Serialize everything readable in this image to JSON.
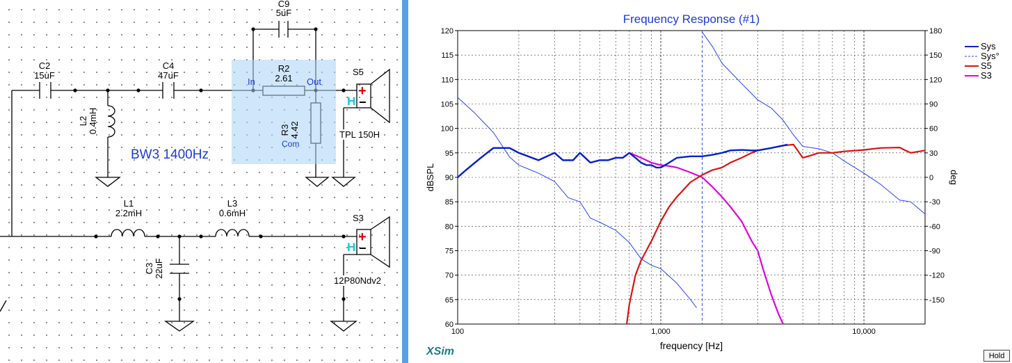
{
  "schematic": {
    "components": {
      "C2": {
        "name": "C2",
        "value": "15uF"
      },
      "C4": {
        "name": "C4",
        "value": "47uF"
      },
      "C9": {
        "name": "C9",
        "value": "5uF"
      },
      "R2": {
        "name": "R2",
        "value": "2.61"
      },
      "R3": {
        "name": "R3",
        "value": "4.42"
      },
      "L2": {
        "name": "L2",
        "value": "0.4mH"
      },
      "L1": {
        "name": "L1",
        "value": "2.2mH"
      },
      "L3": {
        "name": "L3",
        "value": "0.6mH"
      },
      "C3": {
        "name": "C3",
        "value": "22uF"
      },
      "S5": {
        "name": "S5",
        "model": "TPL 150H"
      },
      "S3": {
        "name": "S3",
        "model": "12P80Ndv2"
      }
    },
    "block_pins": {
      "in": "In",
      "out": "Out",
      "com": "Com"
    },
    "filter_label": "BW3 1400Hz",
    "driver_h": "H",
    "driver_plus": "+",
    "driver_minus": "−"
  },
  "plot": {
    "brand": "XSim",
    "hold_button": "Hold"
  },
  "chart_data": {
    "type": "line",
    "title": "Frequency Response (#1)",
    "xlabel": "frequency [Hz]",
    "ylabel": "dBSPL",
    "y2label": "deg",
    "x_scale": "log",
    "xlim": [
      100,
      20000
    ],
    "ylim": [
      60,
      120
    ],
    "y2lim": [
      -180,
      180
    ],
    "x_ticks": [
      100,
      1000,
      10000
    ],
    "x_tick_labels": [
      "100",
      "1,000",
      "10,000"
    ],
    "y_ticks": [
      60,
      65,
      70,
      75,
      80,
      85,
      90,
      95,
      100,
      105,
      110,
      115,
      120
    ],
    "y2_ticks": [
      -150,
      -120,
      -90,
      -60,
      -30,
      0,
      30,
      60,
      90,
      120,
      150,
      180
    ],
    "grid": true,
    "legend_position": "right",
    "marker_x": 1600,
    "colors": {
      "sys": "#0022cc",
      "sys_phase": "#2244ff",
      "s5": "#dd1111",
      "s3": "#e000e0",
      "grid": "#333333",
      "title": "#1a3ad8",
      "brand": "#1a7a8a"
    },
    "series": [
      {
        "name": "Sys",
        "axis": "left",
        "x": [
          100,
          110,
          130,
          150,
          180,
          200,
          250,
          300,
          330,
          370,
          400,
          450,
          500,
          550,
          600,
          650,
          700,
          750,
          800,
          850,
          900,
          950,
          1000,
          1050,
          1100,
          1200,
          1400,
          1600,
          1800,
          2000,
          2200,
          2500,
          2800,
          3000,
          3500,
          4000,
          4200
        ],
        "y": [
          90,
          91.5,
          94,
          96,
          96,
          95,
          93.5,
          95,
          93.5,
          93.5,
          95,
          93,
          93.5,
          93.5,
          94,
          94,
          95,
          94,
          93,
          92.5,
          92.5,
          92,
          92,
          92.5,
          93,
          94,
          94.3,
          94.3,
          94.6,
          95,
          95.5,
          95.6,
          95.5,
          95.5,
          96,
          96.5,
          96.7
        ]
      },
      {
        "name": "Sys°",
        "axis": "right",
        "x": [
          100,
          120,
          150,
          180,
          200,
          250,
          300,
          350,
          400,
          450,
          500,
          600,
          700,
          800,
          900,
          1000,
          1200,
          1400,
          1500
        ],
        "y": [
          98,
          80,
          55,
          25,
          15,
          5,
          -5,
          -25,
          -30,
          -50,
          -55,
          -65,
          -80,
          -100,
          -108,
          -112,
          -130,
          -150,
          -160
        ]
      },
      {
        "name": "Sys°",
        "axis": "right",
        "x": [
          1600,
          1800,
          2000,
          2500,
          3000,
          3500,
          4000,
          4500,
          5000,
          6000,
          7000,
          8000,
          10000,
          12000,
          15000,
          17000,
          20000
        ],
        "y": [
          178,
          160,
          140,
          115,
          95,
          85,
          70,
          52,
          38,
          35,
          30,
          20,
          5,
          -8,
          -28,
          -30,
          -45
        ]
      },
      {
        "name": "S5",
        "axis": "left",
        "x": [
          680,
          700,
          750,
          800,
          900,
          1000,
          1100,
          1200,
          1400,
          1600,
          1800,
          2000,
          2200,
          2500,
          2800,
          3000,
          3500,
          4000,
          4500,
          5000,
          5500,
          6000,
          7000,
          8000,
          10000,
          12000,
          15000,
          16000,
          17000,
          20000
        ],
        "y": [
          60,
          64,
          70,
          73,
          77,
          81,
          84,
          86,
          89,
          90.5,
          91.5,
          92,
          93,
          94,
          95,
          95.5,
          96,
          96.5,
          96.7,
          94,
          94.5,
          95,
          95,
          95.3,
          95.6,
          96,
          96.1,
          95.5,
          95,
          95.5
        ]
      },
      {
        "name": "S3",
        "axis": "left",
        "x": [
          100,
          110,
          130,
          150,
          180,
          200,
          250,
          300,
          330,
          370,
          400,
          450,
          500,
          550,
          600,
          650,
          700,
          750,
          800,
          900,
          1000,
          1100,
          1200,
          1400,
          1600,
          1800,
          2000,
          2200,
          2500,
          2800,
          3000,
          3200,
          3500,
          3800,
          4000
        ],
        "y": [
          90,
          91.5,
          94,
          96,
          96,
          95,
          93.5,
          95,
          93.5,
          93.5,
          95,
          93,
          93.5,
          93.5,
          94,
          94,
          95,
          94.5,
          94,
          93,
          92.5,
          92.3,
          92,
          91,
          90,
          88,
          86,
          84,
          81,
          77,
          75,
          71,
          66,
          62,
          60
        ]
      }
    ]
  }
}
